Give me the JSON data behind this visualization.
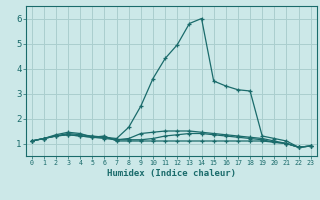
{
  "xlabel": "Humidex (Indice chaleur)",
  "ylabel": "",
  "xlim": [
    -0.5,
    23.5
  ],
  "ylim": [
    0.5,
    6.5
  ],
  "xticks": [
    0,
    1,
    2,
    3,
    4,
    5,
    6,
    7,
    8,
    9,
    10,
    11,
    12,
    13,
    14,
    15,
    16,
    17,
    18,
    19,
    20,
    21,
    22,
    23
  ],
  "yticks": [
    1,
    2,
    3,
    4,
    5,
    6
  ],
  "background_color": "#cce8e8",
  "line_color": "#1a6b6b",
  "grid_color": "#aacece",
  "lines": [
    {
      "x": [
        0,
        1,
        2,
        3,
        4,
        5,
        6,
        7,
        8,
        9,
        10,
        11,
        12,
        13,
        14,
        15,
        16,
        17,
        18,
        19,
        20,
        21,
        22,
        23
      ],
      "y": [
        1.1,
        1.2,
        1.35,
        1.45,
        1.4,
        1.25,
        1.3,
        1.1,
        1.1,
        1.1,
        1.1,
        1.1,
        1.1,
        1.1,
        1.1,
        1.1,
        1.1,
        1.1,
        1.1,
        1.1,
        1.05,
        1.0,
        0.85,
        0.9
      ]
    },
    {
      "x": [
        0,
        1,
        2,
        3,
        4,
        5,
        6,
        7,
        8,
        9,
        10,
        11,
        12,
        13,
        14,
        15,
        16,
        17,
        18,
        19,
        20,
        21,
        22,
        23
      ],
      "y": [
        1.1,
        1.2,
        1.3,
        1.4,
        1.35,
        1.3,
        1.25,
        1.2,
        1.65,
        2.5,
        3.6,
        4.4,
        4.95,
        5.8,
        6.0,
        3.5,
        3.3,
        3.15,
        3.1,
        1.3,
        1.2,
        1.1,
        0.85,
        0.9
      ]
    },
    {
      "x": [
        0,
        1,
        2,
        3,
        4,
        5,
        6,
        7,
        8,
        9,
        10,
        11,
        12,
        13,
        14,
        15,
        16,
        17,
        18,
        19,
        20,
        21,
        22,
        23
      ],
      "y": [
        1.1,
        1.2,
        1.3,
        1.35,
        1.3,
        1.25,
        1.25,
        1.15,
        1.15,
        1.15,
        1.2,
        1.3,
        1.35,
        1.4,
        1.4,
        1.35,
        1.3,
        1.25,
        1.2,
        1.15,
        1.05,
        1.0,
        0.85,
        0.9
      ]
    },
    {
      "x": [
        0,
        1,
        2,
        3,
        4,
        5,
        6,
        7,
        8,
        9,
        10,
        11,
        12,
        13,
        14,
        15,
        16,
        17,
        18,
        19,
        20,
        21,
        22,
        23
      ],
      "y": [
        1.1,
        1.2,
        1.3,
        1.35,
        1.3,
        1.25,
        1.2,
        1.15,
        1.2,
        1.4,
        1.45,
        1.5,
        1.5,
        1.5,
        1.45,
        1.4,
        1.35,
        1.3,
        1.25,
        1.2,
        1.1,
        1.0,
        0.85,
        0.9
      ]
    }
  ]
}
